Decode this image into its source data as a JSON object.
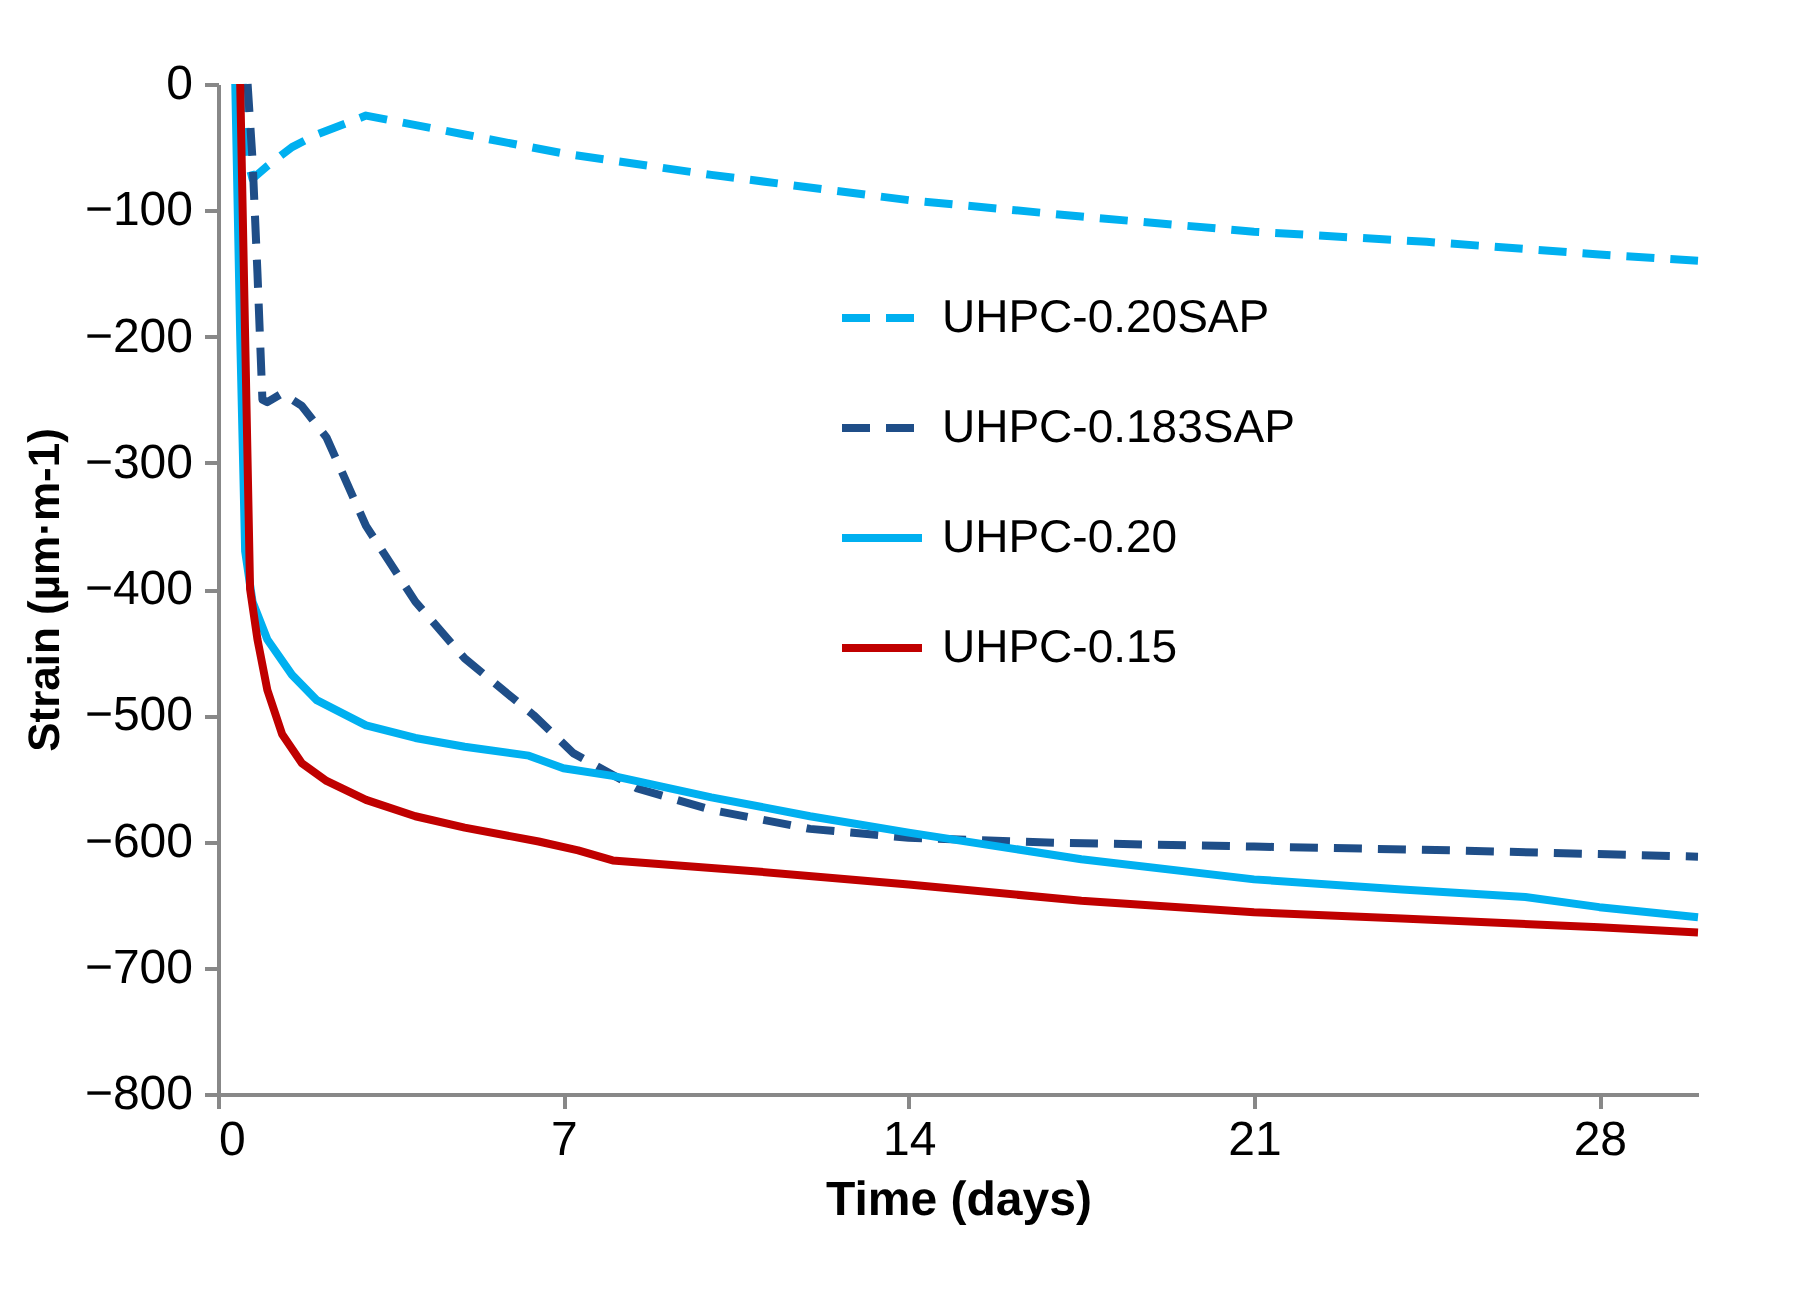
{
  "chart_data": {
    "type": "line",
    "xlabel": "Time (days)",
    "ylabel": "Strain (µm·m-1)",
    "xlim": [
      0,
      30
    ],
    "xticks": [
      0,
      7,
      14,
      21,
      28
    ],
    "ylim": [
      -800,
      0
    ],
    "yticks": [
      0,
      -100,
      -200,
      -300,
      -400,
      -500,
      -600,
      -700,
      -800
    ],
    "grid": false,
    "legend": "top right",
    "marker": "none",
    "series": [
      {
        "name": "UHPC-0.20SAP",
        "color": "#00b0f0",
        "line_style": "dashed",
        "x": [
          0.5,
          0.6,
          0.7,
          1.0,
          1.5,
          2.0,
          3.0,
          5,
          7,
          10,
          14,
          17.5,
          21,
          24.5,
          28,
          30
        ],
        "values": [
          0,
          -60,
          -75,
          -65,
          -50,
          -40,
          -25,
          -40,
          -55,
          -72,
          -92,
          -105,
          -117,
          -125,
          -135,
          -140
        ]
      },
      {
        "name": "UHPC-0.183SAP",
        "color": "#1f4e88",
        "line_style": "dashed",
        "x": [
          0.6,
          0.7,
          0.8,
          0.9,
          1.0,
          1.3,
          1.7,
          2.2,
          3.0,
          4.0,
          5.0,
          6.4,
          7.2,
          8.5,
          10,
          12,
          14,
          17,
          21,
          25,
          30
        ],
        "values": [
          0,
          -60,
          -150,
          -250,
          -252,
          -245,
          -255,
          -280,
          -350,
          -410,
          -455,
          -500,
          -530,
          -558,
          -575,
          -590,
          -597,
          -601,
          -604,
          -607,
          -612
        ]
      },
      {
        "name": "UHPC-0.20",
        "color": "#00b0f0",
        "line_style": "solid",
        "x": [
          0.35,
          0.45,
          0.55,
          0.7,
          1.0,
          1.5,
          2.0,
          3.0,
          4.0,
          5.0,
          6.3,
          7.0,
          8.0,
          10,
          12,
          14,
          17.5,
          21,
          24,
          26.5,
          28,
          30
        ],
        "values": [
          0,
          -200,
          -370,
          -410,
          -440,
          -468,
          -488,
          -508,
          -518,
          -525,
          -532,
          -542,
          -548,
          -565,
          -580,
          -593,
          -614,
          -630,
          -638,
          -644,
          -652,
          -660
        ]
      },
      {
        "name": "UHPC-0.15",
        "color": "#c00000",
        "line_style": "solid",
        "x": [
          0.45,
          0.55,
          0.65,
          0.8,
          1.0,
          1.3,
          1.7,
          2.2,
          3.0,
          4.0,
          5.0,
          6.5,
          7.3,
          8.0,
          11,
          14,
          17.5,
          21,
          24,
          28,
          30
        ],
        "values": [
          0,
          -200,
          -400,
          -440,
          -480,
          -515,
          -538,
          -552,
          -567,
          -580,
          -589,
          -600,
          -607,
          -615,
          -624,
          -634,
          -647,
          -656,
          -661,
          -668,
          -672
        ]
      }
    ]
  }
}
